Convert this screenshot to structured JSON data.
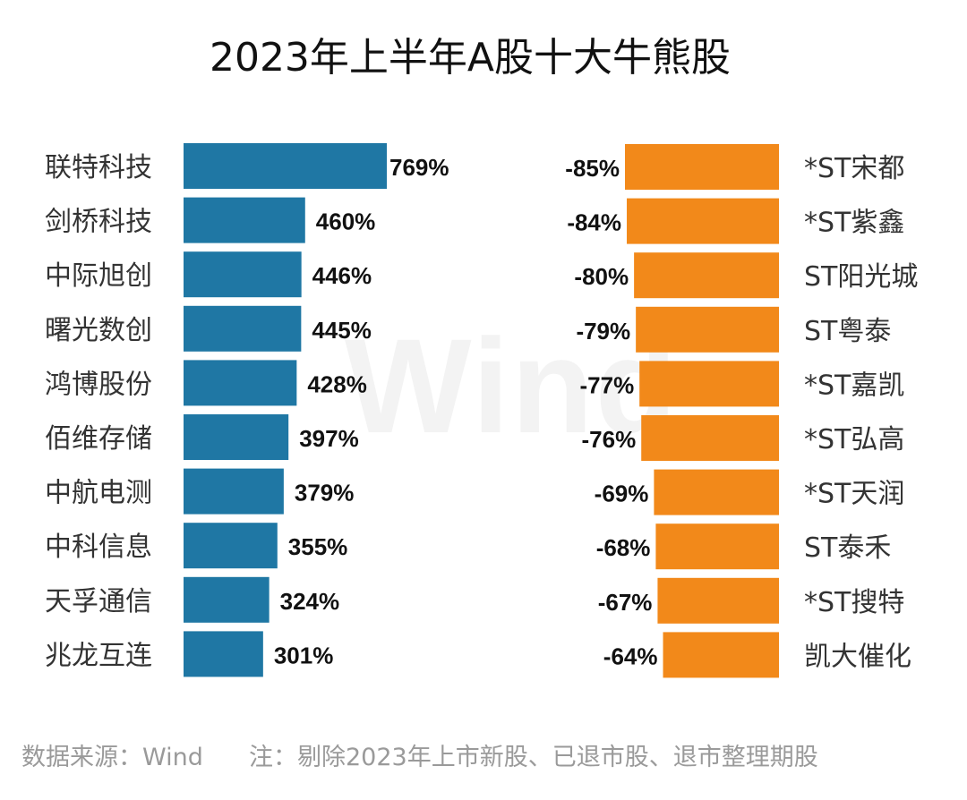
{
  "title": "2023年上半年A股十大牛熊股",
  "watermark": "Wind",
  "footer": {
    "source": "数据来源：Wind",
    "note": "注：剔除2023年上市新股、已退市股、退市整理期股"
  },
  "colors": {
    "bull": "#1f77a4",
    "bear": "#f2891a"
  },
  "chart_data": [
    {
      "type": "bar",
      "orientation": "horizontal",
      "title": "",
      "categories": [
        "联特科技",
        "剑桥科技",
        "中际旭创",
        "曙光数创",
        "鸿博股份",
        "佰维存储",
        "中航电测",
        "中科信息",
        "天孚通信",
        "兆龙互连"
      ],
      "values": [
        769,
        460,
        446,
        445,
        428,
        397,
        379,
        355,
        324,
        301
      ],
      "labels": [
        "769%",
        "460%",
        "446%",
        "445%",
        "428%",
        "397%",
        "379%",
        "355%",
        "324%",
        "301%"
      ],
      "unit": "%"
    },
    {
      "type": "bar",
      "orientation": "horizontal",
      "title": "",
      "categories": [
        "*ST宋都",
        "*ST紫鑫",
        "ST阳光城",
        "ST粤泰",
        "*ST嘉凯",
        "*ST弘高",
        "*ST天润",
        "ST泰禾",
        "*ST搜特",
        "凯大催化"
      ],
      "values": [
        -85,
        -84,
        -80,
        -79,
        -77,
        -76,
        -69,
        -68,
        -67,
        -64
      ],
      "labels": [
        "-85%",
        "-84%",
        "-80%",
        "-79%",
        "-77%",
        "-76%",
        "-69%",
        "-68%",
        "-67%",
        "-64%"
      ],
      "unit": "%"
    }
  ]
}
